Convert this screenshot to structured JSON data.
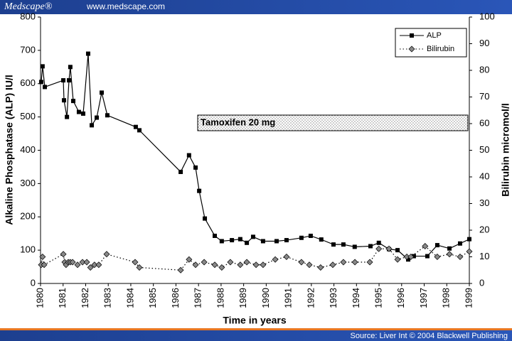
{
  "header": {
    "brand": "Medscape®",
    "url": "www.medscape.com"
  },
  "footer": {
    "source": "Source: Liver Int © 2004 Blackwell Publishing"
  },
  "chart_data": {
    "type": "line",
    "xlabel": "Time in years",
    "ylabel": "Alkaline Phosphatase (ALP) IU/l",
    "y2label": "Bilirubin micromol/l",
    "annotation": "Tamoxifen 20 mg",
    "xlim": [
      1980,
      1999
    ],
    "xticks": [
      1980,
      1981,
      1982,
      1983,
      1984,
      1985,
      1986,
      1987,
      1988,
      1989,
      1990,
      1991,
      1992,
      1993,
      1994,
      1995,
      1996,
      1997,
      1998,
      1999
    ],
    "ylim": [
      0,
      800
    ],
    "yticks": [
      0,
      100,
      200,
      300,
      400,
      500,
      600,
      700,
      800
    ],
    "y2lim": [
      0,
      100
    ],
    "y2ticks": [
      0,
      10,
      20,
      30,
      40,
      50,
      60,
      70,
      80,
      90,
      100
    ],
    "legend": "top-right",
    "series": [
      {
        "name": "ALP",
        "color": "#000000",
        "marker": "square",
        "dash": "solid",
        "x": [
          1980.03,
          1980.09,
          1980.19,
          1981.01,
          1981.04,
          1981.17,
          1981.26,
          1981.32,
          1981.45,
          1981.7,
          1981.89,
          1982.11,
          1982.27,
          1982.49,
          1982.71,
          1982.96,
          1984.22,
          1984.38,
          1986.21,
          1986.58,
          1986.87,
          1987.03,
          1987.28,
          1987.72,
          1988.03,
          1988.48,
          1988.85,
          1989.14,
          1989.42,
          1989.86,
          1990.46,
          1990.9,
          1991.56,
          1991.97,
          1992.44,
          1992.98,
          1993.42,
          1993.92,
          1994.62,
          1994.99,
          1995.44,
          1995.82,
          1996.29,
          1996.54,
          1997.14,
          1997.58,
          1998.12,
          1998.59,
          1999.0
        ],
        "values": [
          605,
          652,
          590,
          610,
          550,
          500,
          610,
          650,
          548,
          515,
          510,
          690,
          475,
          498,
          573,
          505,
          470,
          460,
          335,
          385,
          348,
          278,
          195,
          143,
          127,
          130,
          133,
          122,
          140,
          127,
          127,
          130,
          137,
          143,
          132,
          117,
          117,
          110,
          112,
          122,
          103,
          100,
          72,
          82,
          82,
          115,
          105,
          120,
          133
        ]
      },
      {
        "name": "Bilirubin",
        "color": "#888888",
        "marker": "diamond",
        "dash": "dotted",
        "axis": "y2",
        "x": [
          1980.03,
          1980.09,
          1980.16,
          1981.01,
          1981.07,
          1981.13,
          1981.23,
          1981.32,
          1981.42,
          1981.64,
          1981.86,
          1982.05,
          1982.21,
          1982.39,
          1982.58,
          1982.93,
          1984.19,
          1984.38,
          1986.21,
          1986.58,
          1986.87,
          1987.25,
          1987.72,
          1988.03,
          1988.41,
          1988.85,
          1989.14,
          1989.55,
          1989.86,
          1990.4,
          1990.9,
          1991.56,
          1991.91,
          1992.41,
          1992.95,
          1993.42,
          1993.93,
          1994.59,
          1994.99,
          1995.44,
          1995.82,
          1996.23,
          1996.41,
          1997.04,
          1997.58,
          1998.12,
          1998.59,
          1999.0
        ],
        "values": [
          7,
          10,
          7,
          11,
          8,
          7,
          8,
          8,
          8,
          7,
          8,
          8,
          6,
          7,
          7,
          11,
          8,
          6,
          5,
          9,
          7,
          8,
          7,
          6,
          8,
          7,
          8,
          7,
          7,
          9,
          10,
          8,
          7,
          6,
          7,
          8,
          8,
          8,
          13,
          13,
          9,
          10,
          10,
          14,
          10,
          11,
          10,
          12
        ]
      }
    ]
  }
}
